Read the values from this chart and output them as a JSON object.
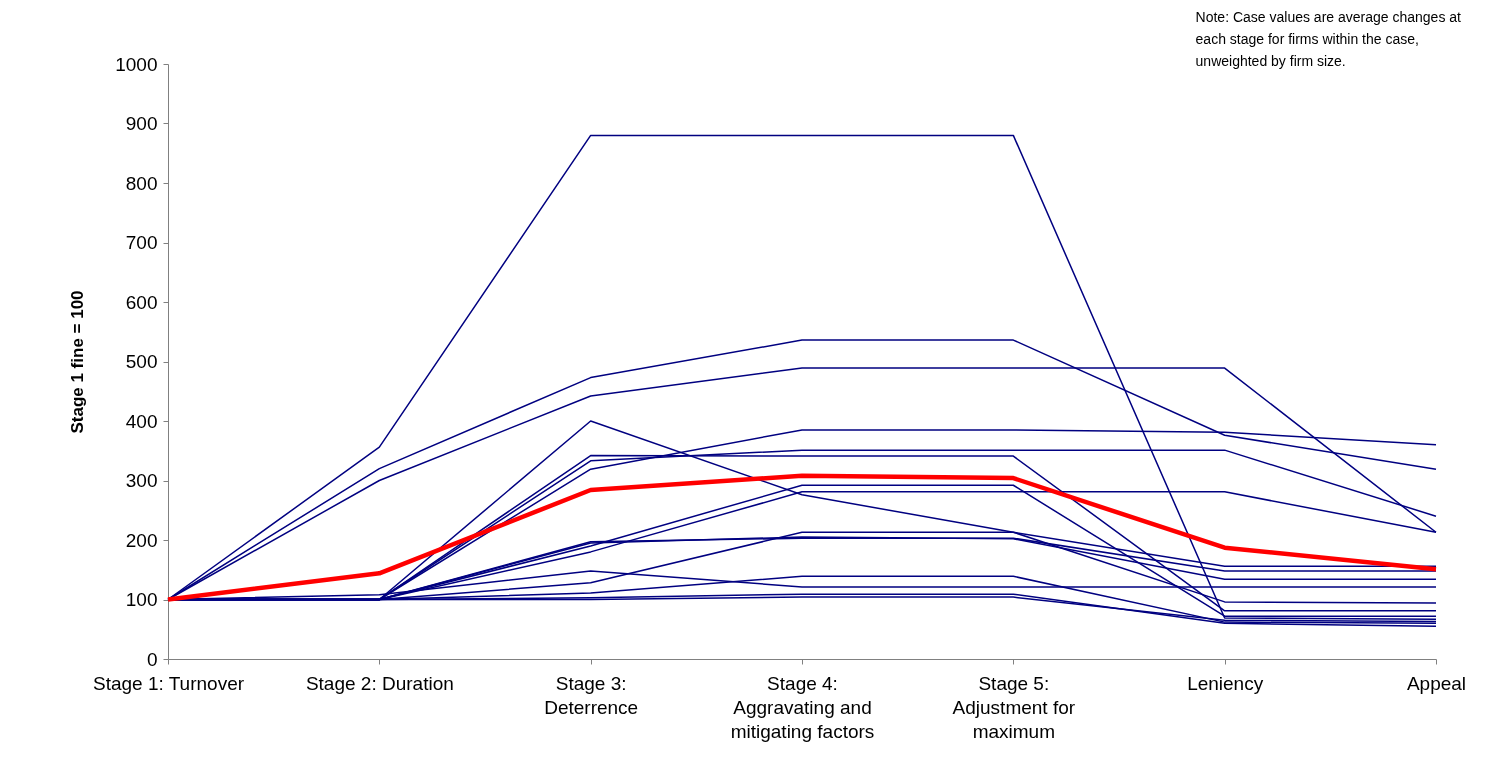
{
  "chart_data": {
    "type": "line",
    "ylabel": "Stage 1 fine = 100",
    "categories": [
      "Stage 1: Turnover",
      "Stage 2: Duration",
      "Stage 3: Deterrence",
      "Stage 4: Aggravating and mitigating factors",
      "Stage 5: Adjustment for maximum",
      "Leniency",
      "Appeal"
    ],
    "ylim": [
      0,
      1000
    ],
    "yticks": [
      0,
      100,
      200,
      300,
      400,
      500,
      600,
      700,
      800,
      900,
      1000
    ],
    "grid": false,
    "legend": false,
    "marker": "none",
    "line_style": "solid",
    "annotations": [
      "Note: Case values are average changes at each stage for firms within the case, unweighted by firm size."
    ],
    "series": [
      {
        "color": "#000080",
        "values": [
          100,
          356,
          880,
          880,
          880,
          69,
          67
        ]
      },
      {
        "color": "#000080",
        "values": [
          100,
          320,
          473,
          536,
          536,
          376,
          319
        ]
      },
      {
        "color": "#000080",
        "values": [
          100,
          300,
          442,
          489,
          489,
          489,
          213
        ]
      },
      {
        "color": "#000080",
        "values": [
          100,
          100,
          319,
          385,
          385,
          381,
          360
        ]
      },
      {
        "color": "#000080",
        "values": [
          100,
          100,
          333,
          351,
          351,
          351,
          240
        ]
      },
      {
        "color": "#000080",
        "values": [
          100,
          100,
          342,
          341,
          341,
          81,
          81
        ]
      },
      {
        "color": "#000080",
        "values": [
          100,
          100,
          190,
          292,
          292,
          72,
          72
        ]
      },
      {
        "color": "#000080",
        "values": [
          100,
          100,
          180,
          281,
          281,
          281,
          213
        ]
      },
      {
        "color": "#000080",
        "values": [
          100,
          100,
          400,
          276,
          213,
          156,
          156
        ]
      },
      {
        "color": "#000080",
        "values": [
          100,
          100,
          197,
          203,
          203,
          148,
          148
        ]
      },
      {
        "color": "#000080",
        "values": [
          100,
          100,
          195,
          205,
          202,
          134,
          134
        ]
      },
      {
        "color": "#000080",
        "values": [
          100,
          108,
          148,
          121,
          121,
          121,
          121
        ]
      },
      {
        "color": "#000080",
        "values": [
          100,
          100,
          128,
          213,
          213,
          96,
          94
        ]
      },
      {
        "color": "#000080",
        "values": [
          100,
          100,
          111,
          139,
          139,
          62,
          60
        ]
      },
      {
        "color": "#000080",
        "values": [
          100,
          100,
          103,
          109,
          109,
          60,
          55
        ]
      },
      {
        "color": "#000080",
        "values": [
          100,
          100,
          100,
          104,
          104,
          65,
          63
        ]
      },
      {
        "color": "#ff0000",
        "values": [
          100,
          144,
          284,
          308,
          304,
          187,
          151
        ]
      }
    ]
  }
}
